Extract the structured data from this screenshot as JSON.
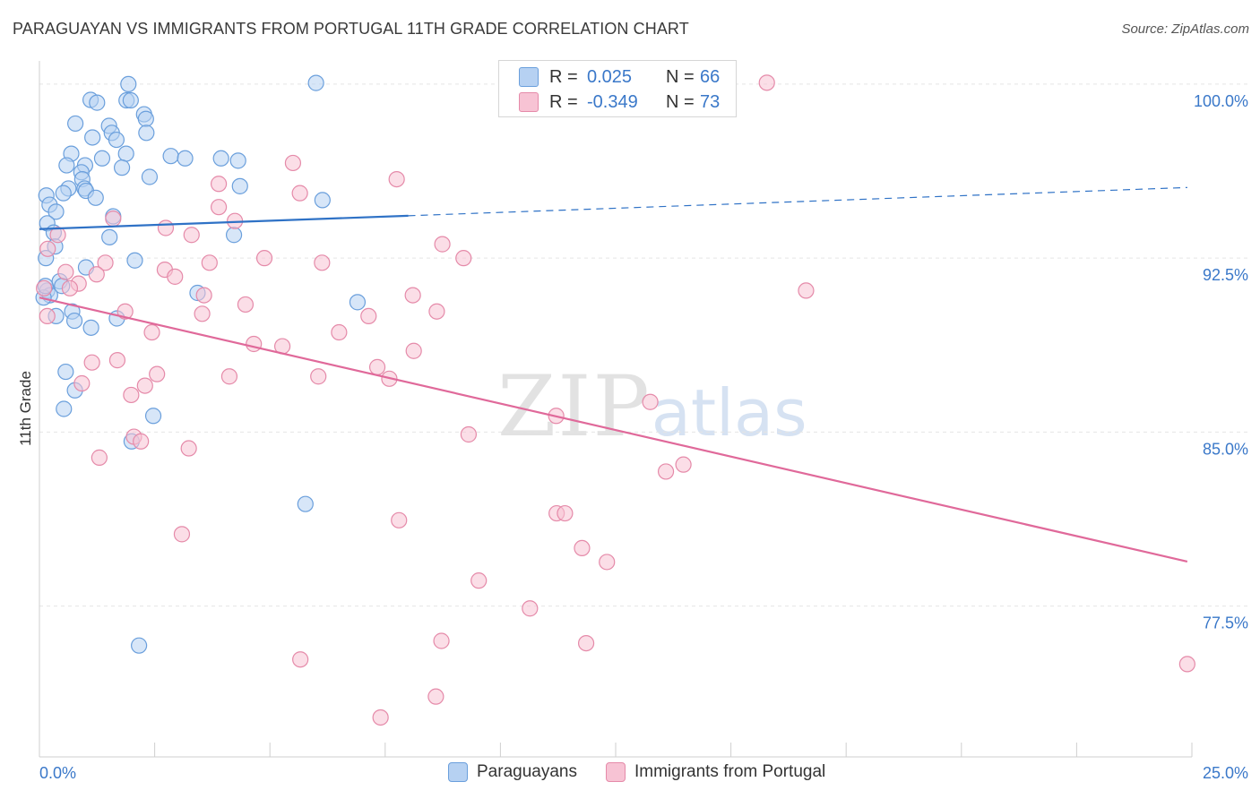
{
  "header": {
    "title": "PARAGUAYAN VS IMMIGRANTS FROM PORTUGAL 11TH GRADE CORRELATION CHART",
    "source": "Source: ZipAtlas.com"
  },
  "watermark": {
    "zip": "ZIP",
    "atlas": "atlas"
  },
  "legend_top": {
    "rows": [
      {
        "r_label": "R =",
        "r_value": "0.025",
        "n_label": "N =",
        "n_value": "66"
      },
      {
        "r_label": "R =",
        "r_value": "-0.349",
        "n_label": "N =",
        "n_value": "73"
      }
    ]
  },
  "legend_bottom": {
    "items": [
      "Paraguayans",
      "Immigrants from Portugal"
    ]
  },
  "colors": {
    "blue_fill": "#b6d1f2",
    "blue_stroke": "#6a9fdc",
    "blue_line": "#2f72c6",
    "pink_fill": "#f7c3d4",
    "pink_stroke": "#e58aa9",
    "pink_line": "#e0699a",
    "grid": "#e5e5e5",
    "tick_label": "#3a78c9"
  },
  "chart_data": {
    "type": "scatter",
    "title": "PARAGUAYAN VS IMMIGRANTS FROM PORTUGAL 11TH GRADE CORRELATION CHART",
    "xlabel": "",
    "ylabel": "11th Grade",
    "xlim": [
      0,
      25
    ],
    "ylim": [
      71.0,
      101.0
    ],
    "x_tick_labels": [
      {
        "value": 0,
        "label": "0.0%"
      },
      {
        "value": 25,
        "label": "25.0%"
      }
    ],
    "y_tick_labels": [
      {
        "value": 100,
        "label": "100.0%"
      },
      {
        "value": 92.5,
        "label": "92.5%"
      },
      {
        "value": 85,
        "label": "85.0%"
      },
      {
        "value": 77.5,
        "label": "77.5%"
      }
    ],
    "grid": true,
    "legend": "bottom-center",
    "series": [
      {
        "name": "Paraguayans",
        "trend": {
          "x_solid_end": 8.0,
          "y_at_0": 93.75,
          "slope": 0.072,
          "x_dashed_end": 24.9
        },
        "points": [
          [
            1.93,
            100.0
          ],
          [
            6.0,
            100.05
          ],
          [
            1.11,
            99.32
          ],
          [
            1.25,
            99.2
          ],
          [
            1.89,
            99.3
          ],
          [
            1.98,
            99.3
          ],
          [
            2.27,
            98.7
          ],
          [
            0.78,
            98.3
          ],
          [
            2.31,
            98.5
          ],
          [
            1.51,
            98.2
          ],
          [
            1.57,
            97.9
          ],
          [
            2.32,
            97.9
          ],
          [
            1.67,
            97.6
          ],
          [
            1.15,
            97.7
          ],
          [
            1.88,
            97.0
          ],
          [
            1.36,
            96.8
          ],
          [
            0.69,
            97.0
          ],
          [
            2.85,
            96.9
          ],
          [
            3.16,
            96.8
          ],
          [
            3.94,
            96.8
          ],
          [
            4.31,
            96.7
          ],
          [
            0.59,
            96.5
          ],
          [
            0.99,
            96.5
          ],
          [
            1.79,
            96.4
          ],
          [
            0.91,
            96.2
          ],
          [
            2.39,
            96.0
          ],
          [
            0.93,
            95.9
          ],
          [
            4.35,
            95.6
          ],
          [
            0.63,
            95.5
          ],
          [
            0.98,
            95.5
          ],
          [
            1.01,
            95.4
          ],
          [
            0.52,
            95.3
          ],
          [
            0.15,
            95.2
          ],
          [
            1.22,
            95.1
          ],
          [
            6.14,
            95.0
          ],
          [
            0.22,
            94.8
          ],
          [
            0.36,
            94.5
          ],
          [
            1.6,
            94.3
          ],
          [
            0.17,
            94.0
          ],
          [
            0.31,
            93.6
          ],
          [
            1.52,
            93.4
          ],
          [
            4.22,
            93.5
          ],
          [
            0.34,
            93.0
          ],
          [
            2.07,
            92.4
          ],
          [
            0.14,
            92.5
          ],
          [
            1.01,
            92.1
          ],
          [
            0.44,
            91.5
          ],
          [
            0.49,
            91.3
          ],
          [
            3.43,
            91.0
          ],
          [
            0.17,
            91.1
          ],
          [
            0.23,
            90.9
          ],
          [
            0.09,
            90.8
          ],
          [
            6.9,
            90.6
          ],
          [
            0.71,
            90.2
          ],
          [
            0.36,
            90.0
          ],
          [
            1.68,
            89.9
          ],
          [
            1.12,
            89.5
          ],
          [
            0.76,
            89.8
          ],
          [
            0.57,
            87.6
          ],
          [
            0.77,
            86.8
          ],
          [
            0.53,
            86.0
          ],
          [
            2.47,
            85.7
          ],
          [
            2.0,
            84.6
          ],
          [
            5.77,
            81.9
          ],
          [
            2.16,
            75.8
          ],
          [
            0.13,
            91.3
          ]
        ]
      },
      {
        "name": "Immigrants from Portugal",
        "trend": {
          "x_solid_end": 24.9,
          "y_at_0": 90.8,
          "slope": -0.457
        },
        "points": [
          [
            13.86,
            100.1
          ],
          [
            15.78,
            100.06
          ],
          [
            5.5,
            96.6
          ],
          [
            7.75,
            95.9
          ],
          [
            3.89,
            95.7
          ],
          [
            5.65,
            95.3
          ],
          [
            3.89,
            94.7
          ],
          [
            4.24,
            94.1
          ],
          [
            1.6,
            94.2
          ],
          [
            2.74,
            93.8
          ],
          [
            0.4,
            93.5
          ],
          [
            3.3,
            93.5
          ],
          [
            8.74,
            93.1
          ],
          [
            0.18,
            92.9
          ],
          [
            9.2,
            92.5
          ],
          [
            4.88,
            92.5
          ],
          [
            6.13,
            92.3
          ],
          [
            1.43,
            92.3
          ],
          [
            3.69,
            92.3
          ],
          [
            2.72,
            92.0
          ],
          [
            0.57,
            91.9
          ],
          [
            1.24,
            91.8
          ],
          [
            2.94,
            91.7
          ],
          [
            0.85,
            91.4
          ],
          [
            0.66,
            91.2
          ],
          [
            0.1,
            91.2
          ],
          [
            3.57,
            90.9
          ],
          [
            16.63,
            91.1
          ],
          [
            8.1,
            90.9
          ],
          [
            4.47,
            90.5
          ],
          [
            8.62,
            90.2
          ],
          [
            3.53,
            90.1
          ],
          [
            1.86,
            90.2
          ],
          [
            0.17,
            90.0
          ],
          [
            2.44,
            89.3
          ],
          [
            7.14,
            90.0
          ],
          [
            6.5,
            89.3
          ],
          [
            4.65,
            88.8
          ],
          [
            5.27,
            88.7
          ],
          [
            8.12,
            88.5
          ],
          [
            1.14,
            88.0
          ],
          [
            1.69,
            88.1
          ],
          [
            7.33,
            87.8
          ],
          [
            2.55,
            87.5
          ],
          [
            6.05,
            87.4
          ],
          [
            4.12,
            87.4
          ],
          [
            7.59,
            87.3
          ],
          [
            2.29,
            87.0
          ],
          [
            0.92,
            87.1
          ],
          [
            1.99,
            86.6
          ],
          [
            13.25,
            86.3
          ],
          [
            11.21,
            85.7
          ],
          [
            9.31,
            84.9
          ],
          [
            2.05,
            84.8
          ],
          [
            2.2,
            84.6
          ],
          [
            3.24,
            84.3
          ],
          [
            1.3,
            83.9
          ],
          [
            13.97,
            83.6
          ],
          [
            13.59,
            83.3
          ],
          [
            11.22,
            81.5
          ],
          [
            7.8,
            81.2
          ],
          [
            11.4,
            81.5
          ],
          [
            3.09,
            80.6
          ],
          [
            11.77,
            80.0
          ],
          [
            12.31,
            79.4
          ],
          [
            9.53,
            78.6
          ],
          [
            10.64,
            77.4
          ],
          [
            8.72,
            76.0
          ],
          [
            11.86,
            75.9
          ],
          [
            5.66,
            75.2
          ],
          [
            24.9,
            75.0
          ],
          [
            8.6,
            73.6
          ],
          [
            7.4,
            72.7
          ]
        ]
      }
    ]
  }
}
